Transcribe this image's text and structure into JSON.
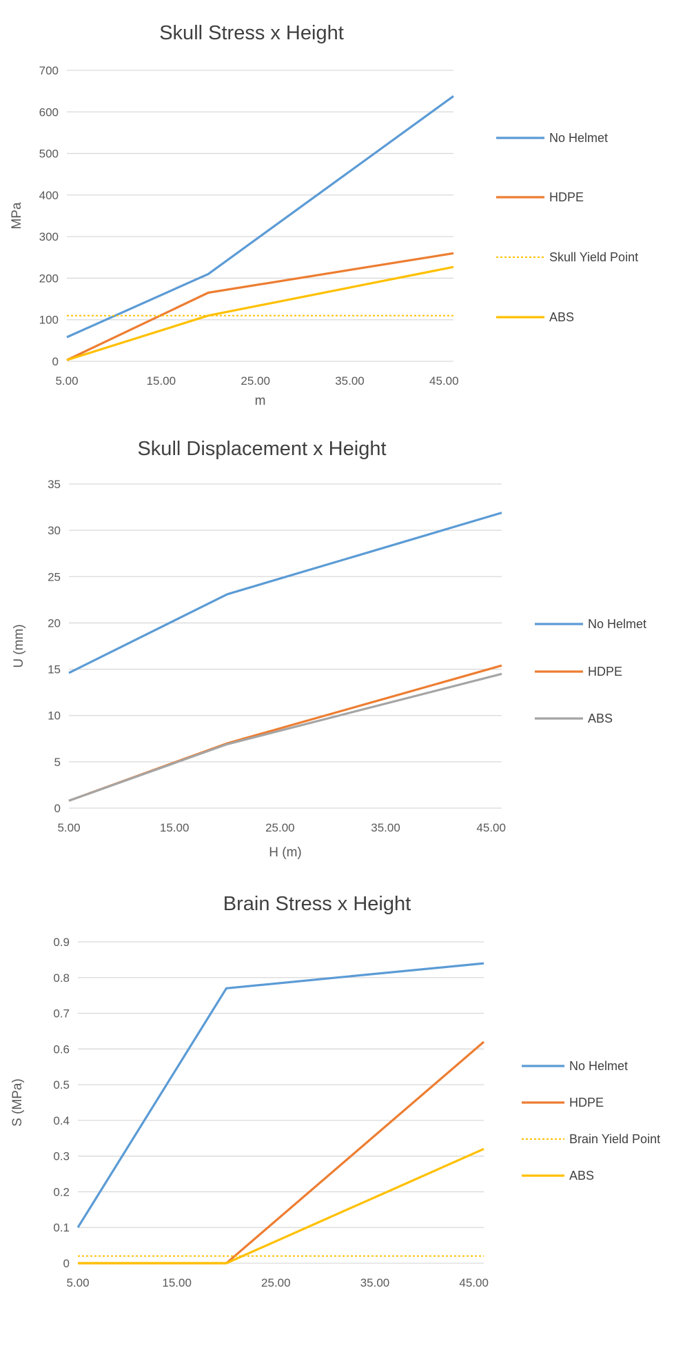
{
  "chart_data": [
    {
      "type": "line",
      "title": "Skull Stress x Height",
      "xlabel": "m",
      "ylabel": "MPa",
      "xlim": [
        5,
        46
      ],
      "ylim": [
        0,
        700
      ],
      "xticks": [
        "5.00",
        "15.00",
        "25.00",
        "35.00",
        "45.00"
      ],
      "yticks": [
        "0",
        "100",
        "200",
        "300",
        "400",
        "500",
        "600",
        "700"
      ],
      "grid": true,
      "legend": "right",
      "series": [
        {
          "name": "No Helmet",
          "color": "#5b9bd5",
          "style": "solid",
          "x": [
            5,
            20,
            46
          ],
          "y": [
            58,
            210,
            638
          ]
        },
        {
          "name": "HDPE",
          "color": "#ed7d31",
          "style": "solid",
          "x": [
            5,
            20,
            46
          ],
          "y": [
            3,
            165,
            260
          ]
        },
        {
          "name": "Skull Yield Point",
          "color": "#ffc000",
          "style": "dotted",
          "x": [
            5,
            46
          ],
          "y": [
            110,
            110
          ]
        },
        {
          "name": "ABS",
          "color": "#ffc000",
          "style": "solid",
          "x": [
            5,
            20,
            46
          ],
          "y": [
            3,
            110,
            227
          ]
        }
      ]
    },
    {
      "type": "line",
      "title": "Skull Displacement x Height",
      "xlabel": "H (m)",
      "ylabel": "U (mm)",
      "xlim": [
        5,
        46
      ],
      "ylim": [
        0,
        35
      ],
      "xticks": [
        "5.00",
        "15.00",
        "25.00",
        "35.00",
        "45.00"
      ],
      "yticks": [
        "0",
        "5",
        "10",
        "15",
        "20",
        "25",
        "30",
        "35"
      ],
      "grid": true,
      "legend": "right",
      "series": [
        {
          "name": "No Helmet",
          "color": "#5b9bd5",
          "style": "solid",
          "x": [
            5,
            20,
            46
          ],
          "y": [
            14.6,
            23.1,
            31.9
          ]
        },
        {
          "name": "HDPE",
          "color": "#ed7d31",
          "style": "solid",
          "x": [
            5,
            20,
            46
          ],
          "y": [
            0.8,
            7.0,
            15.4
          ]
        },
        {
          "name": "ABS",
          "color": "#a5a5a5",
          "style": "solid",
          "x": [
            5,
            20,
            46
          ],
          "y": [
            0.8,
            6.9,
            14.5
          ]
        }
      ]
    },
    {
      "type": "line",
      "title": "Brain Stress x Height",
      "xlabel": "H (m)",
      "ylabel": "S (MPa)",
      "xlim": [
        5,
        46
      ],
      "ylim": [
        0,
        0.9
      ],
      "xticks": [
        "5.00",
        "15.00",
        "25.00",
        "35.00",
        "45.00"
      ],
      "yticks": [
        "0",
        "0.1",
        "0.2",
        "0.3",
        "0.4",
        "0.5",
        "0.6",
        "0.7",
        "0.8",
        "0.9"
      ],
      "grid": true,
      "legend": "right",
      "series": [
        {
          "name": "No Helmet",
          "color": "#5b9bd5",
          "style": "solid",
          "x": [
            5,
            20,
            46
          ],
          "y": [
            0.1,
            0.77,
            0.84
          ]
        },
        {
          "name": "HDPE",
          "color": "#ed7d31",
          "style": "solid",
          "x": [
            5,
            20,
            46
          ],
          "y": [
            0,
            0,
            0.62
          ]
        },
        {
          "name": "Brain Yield Point",
          "color": "#ffc000",
          "style": "dotted",
          "x": [
            5,
            46
          ],
          "y": [
            0.02,
            0.02
          ]
        },
        {
          "name": "ABS",
          "color": "#ffc000",
          "style": "solid",
          "x": [
            5,
            20,
            46
          ],
          "y": [
            0,
            0,
            0.32
          ]
        }
      ]
    }
  ]
}
